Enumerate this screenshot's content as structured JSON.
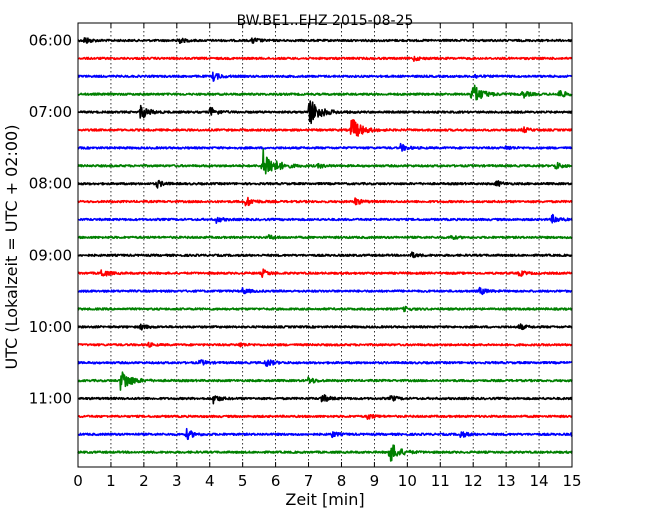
{
  "chart_data": {
    "type": "line",
    "title": "BW.BE1..EHZ 2015-08-25",
    "xlabel": "Zeit  [min]",
    "ylabel": "UTC (Lokalzeit = UTC + 02:00)",
    "xlim": [
      0,
      15
    ],
    "x_ticks": [
      "0",
      "1",
      "2",
      "3",
      "4",
      "5",
      "6",
      "7",
      "8",
      "9",
      "10",
      "11",
      "12",
      "13",
      "14",
      "15"
    ],
    "y_tick_labels": [
      {
        "row": 0,
        "label": "06:00"
      },
      {
        "row": 4,
        "label": "07:00"
      },
      {
        "row": 8,
        "label": "08:00"
      },
      {
        "row": 12,
        "label": "09:00"
      },
      {
        "row": 16,
        "label": "10:00"
      },
      {
        "row": 20,
        "label": "11:00"
      }
    ],
    "rows_per_hour": 4,
    "minutes_per_row": 15,
    "color_cycle": [
      "#000000",
      "#ff0000",
      "#0000ff",
      "#008000"
    ],
    "grid": "vertical-dotted",
    "traces": [
      {
        "start": "06:00",
        "events": [
          {
            "t": 0.2,
            "a": 0.5
          },
          {
            "t": 3.0,
            "a": 0.5
          },
          {
            "t": 5.3,
            "a": 0.4
          }
        ]
      },
      {
        "start": "06:15",
        "events": [
          {
            "t": 10.2,
            "a": 0.3
          }
        ]
      },
      {
        "start": "06:30",
        "events": [
          {
            "t": 4.1,
            "a": 0.6
          },
          {
            "t": 12.0,
            "a": 0.3
          }
        ]
      },
      {
        "start": "06:45",
        "events": [
          {
            "t": 11.95,
            "a": 1.6
          },
          {
            "t": 13.5,
            "a": 0.5
          },
          {
            "t": 14.6,
            "a": 0.6
          }
        ]
      },
      {
        "start": "07:00",
        "events": [
          {
            "t": 1.9,
            "a": 1.0
          },
          {
            "t": 4.0,
            "a": 0.7
          },
          {
            "t": 7.0,
            "a": 2.0
          }
        ]
      },
      {
        "start": "07:15",
        "events": [
          {
            "t": 8.3,
            "a": 1.7
          },
          {
            "t": 13.5,
            "a": 0.4
          }
        ]
      },
      {
        "start": "07:30",
        "events": [
          {
            "t": 9.8,
            "a": 0.5
          },
          {
            "t": 13.0,
            "a": 0.3
          }
        ]
      },
      {
        "start": "07:45",
        "events": [
          {
            "t": 5.6,
            "a": 2.3
          },
          {
            "t": 7.3,
            "a": 0.3
          },
          {
            "t": 14.5,
            "a": 0.5
          }
        ]
      },
      {
        "start": "08:00",
        "events": [
          {
            "t": 2.4,
            "a": 0.5
          },
          {
            "t": 12.7,
            "a": 0.4
          }
        ]
      },
      {
        "start": "08:15",
        "events": [
          {
            "t": 5.1,
            "a": 0.7
          },
          {
            "t": 8.4,
            "a": 0.5
          }
        ]
      },
      {
        "start": "08:30",
        "events": [
          {
            "t": 4.2,
            "a": 0.4
          },
          {
            "t": 14.4,
            "a": 0.6
          }
        ]
      },
      {
        "start": "08:45",
        "events": [
          {
            "t": 5.8,
            "a": 0.3
          },
          {
            "t": 11.3,
            "a": 0.3
          }
        ]
      },
      {
        "start": "09:00",
        "events": [
          {
            "t": 10.1,
            "a": 0.4
          }
        ]
      },
      {
        "start": "09:15",
        "events": [
          {
            "t": 0.7,
            "a": 0.6
          },
          {
            "t": 5.6,
            "a": 0.5
          },
          {
            "t": 13.4,
            "a": 0.4
          }
        ]
      },
      {
        "start": "09:30",
        "events": [
          {
            "t": 5.0,
            "a": 0.4
          },
          {
            "t": 12.2,
            "a": 0.5
          }
        ]
      },
      {
        "start": "09:45",
        "events": [
          {
            "t": 9.9,
            "a": 0.3
          }
        ]
      },
      {
        "start": "10:00",
        "events": [
          {
            "t": 1.9,
            "a": 0.4
          },
          {
            "t": 13.4,
            "a": 0.4
          }
        ]
      },
      {
        "start": "10:15",
        "events": [
          {
            "t": 2.1,
            "a": 0.3
          },
          {
            "t": 4.9,
            "a": 0.3
          }
        ]
      },
      {
        "start": "10:30",
        "events": [
          {
            "t": 3.7,
            "a": 0.4
          },
          {
            "t": 5.7,
            "a": 0.6
          }
        ]
      },
      {
        "start": "10:45",
        "events": [
          {
            "t": 1.3,
            "a": 1.6
          },
          {
            "t": 7.0,
            "a": 0.5
          }
        ]
      },
      {
        "start": "11:00",
        "events": [
          {
            "t": 4.1,
            "a": 0.6
          },
          {
            "t": 7.4,
            "a": 0.6
          },
          {
            "t": 9.5,
            "a": 0.4
          }
        ]
      },
      {
        "start": "11:15",
        "events": [
          {
            "t": 8.8,
            "a": 0.4
          }
        ]
      },
      {
        "start": "11:30",
        "events": [
          {
            "t": 3.3,
            "a": 0.7
          },
          {
            "t": 7.7,
            "a": 0.4
          },
          {
            "t": 11.6,
            "a": 0.5
          },
          {
            "t": 15.0,
            "a": 0.4
          }
        ]
      },
      {
        "start": "11:45",
        "events": [
          {
            "t": 9.45,
            "a": 1.5
          }
        ]
      }
    ]
  }
}
